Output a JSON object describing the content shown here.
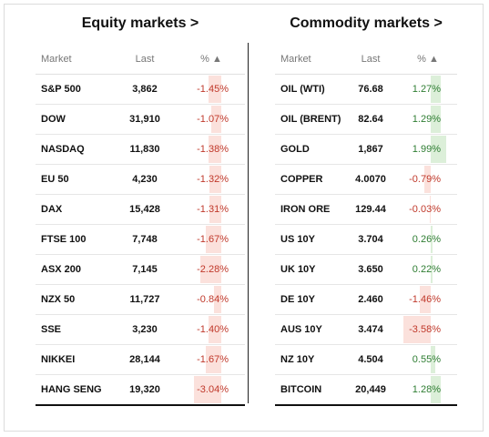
{
  "equity": {
    "title": "Equity markets >",
    "headers": {
      "market": "Market",
      "last": "Last",
      "pct": "% ▲"
    },
    "rows": [
      {
        "market": "S&P 500",
        "last": "3,862",
        "pct": "-1.45%",
        "change": -1.45
      },
      {
        "market": "DOW",
        "last": "31,910",
        "pct": "-1.07%",
        "change": -1.07
      },
      {
        "market": "NASDAQ",
        "last": "11,830",
        "pct": "-1.38%",
        "change": -1.38
      },
      {
        "market": "EU 50",
        "last": "4,230",
        "pct": "-1.32%",
        "change": -1.32
      },
      {
        "market": "DAX",
        "last": "15,428",
        "pct": "-1.31%",
        "change": -1.31
      },
      {
        "market": "FTSE 100",
        "last": "7,748",
        "pct": "-1.67%",
        "change": -1.67
      },
      {
        "market": "ASX 200",
        "last": "7,145",
        "pct": "-2.28%",
        "change": -2.28
      },
      {
        "market": "NZX 50",
        "last": "11,727",
        "pct": "-0.84%",
        "change": -0.84
      },
      {
        "market": "SSE",
        "last": "3,230",
        "pct": "-1.40%",
        "change": -1.4
      },
      {
        "market": "NIKKEI",
        "last": "28,144",
        "pct": "-1.67%",
        "change": -1.67
      },
      {
        "market": "HANG SENG",
        "last": "19,320",
        "pct": "-3.04%",
        "change": -3.04
      }
    ]
  },
  "commodity": {
    "title": "Commodity markets >",
    "headers": {
      "market": "Market",
      "last": "Last",
      "pct": "% ▲"
    },
    "rows": [
      {
        "market": "OIL (WTI)",
        "last": "76.68",
        "pct": "1.27%",
        "change": 1.27
      },
      {
        "market": "OIL (BRENT)",
        "last": "82.64",
        "pct": "1.29%",
        "change": 1.29
      },
      {
        "market": "GOLD",
        "last": "1,867",
        "pct": "1.99%",
        "change": 1.99
      },
      {
        "market": "COPPER",
        "last": "4.0070",
        "pct": "-0.79%",
        "change": -0.79
      },
      {
        "market": "IRON ORE",
        "last": "129.44",
        "pct": "-0.03%",
        "change": -0.03
      },
      {
        "market": "US 10Y",
        "last": "3.704",
        "pct": "0.26%",
        "change": 0.26
      },
      {
        "market": "UK 10Y",
        "last": "3.650",
        "pct": "0.22%",
        "change": 0.22
      },
      {
        "market": "DE 10Y",
        "last": "2.460",
        "pct": "-1.46%",
        "change": -1.46
      },
      {
        "market": "AUS 10Y",
        "last": "3.474",
        "pct": "-3.58%",
        "change": -3.58
      },
      {
        "market": "NZ 10Y",
        "last": "4.504",
        "pct": "0.55%",
        "change": 0.55
      },
      {
        "market": "BITCOIN",
        "last": "20,449",
        "pct": "1.28%",
        "change": 1.28
      }
    ]
  },
  "colors": {
    "negative_text": "#c0392b",
    "positive_text": "#2e7d32",
    "negative_bar": "#fbe1dc",
    "positive_bar": "#dcefd9"
  }
}
